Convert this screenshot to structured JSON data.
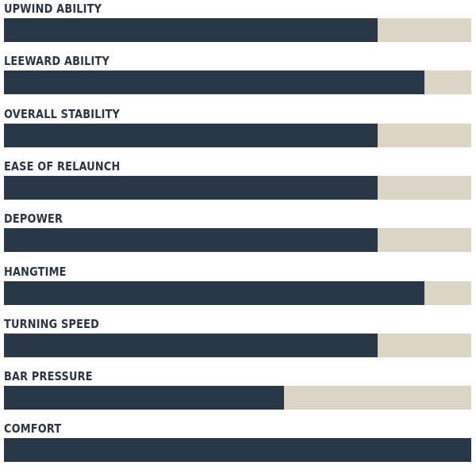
{
  "chart_data": {
    "type": "bar",
    "orientation": "horizontal",
    "categories": [
      "UPWIND ABILITY",
      "LEEWARD ABILITY",
      "OVERALL STABILITY",
      "EASE OF RELAUNCH",
      "DEPOWER",
      "HANGTIME",
      "TURNING SPEED",
      "BAR PRESSURE",
      "COMFORT"
    ],
    "values": [
      8,
      9,
      8,
      8,
      8,
      9,
      8,
      6,
      10
    ],
    "xlim": [
      0,
      10
    ],
    "grid": false,
    "legend": "none"
  },
  "colors": {
    "fill": "#293749",
    "track": "#dcd5c5",
    "label": "#2a3543"
  }
}
